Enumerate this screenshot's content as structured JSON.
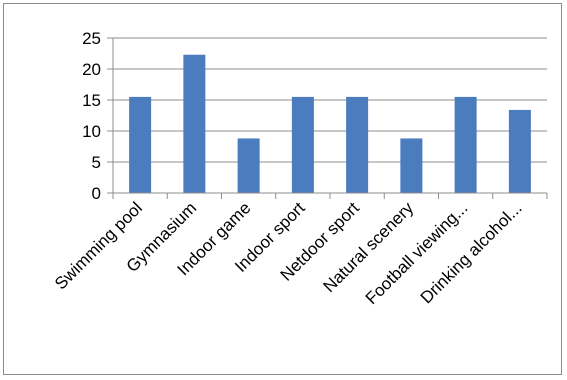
{
  "chart_data": {
    "type": "bar",
    "title": "",
    "xlabel": "",
    "ylabel": "",
    "categories": [
      "Swimming pool",
      "Gymnasium",
      "Indoor game",
      "Indoor sport",
      "Netdoor sport",
      "Natural scenery",
      "Football viewing...",
      "Drinking alcohol..."
    ],
    "values": [
      15.5,
      22.3,
      8.8,
      15.5,
      15.5,
      8.8,
      15.5,
      13.4
    ],
    "ylim": [
      0,
      25
    ],
    "yticks": [
      "0",
      "5",
      "10",
      "15",
      "20",
      "25"
    ],
    "grid": true,
    "legend": "none",
    "colors": {
      "bar": "#4a7cbe",
      "grid": "#8c8c8c",
      "axis": "#8c8c8c"
    }
  }
}
